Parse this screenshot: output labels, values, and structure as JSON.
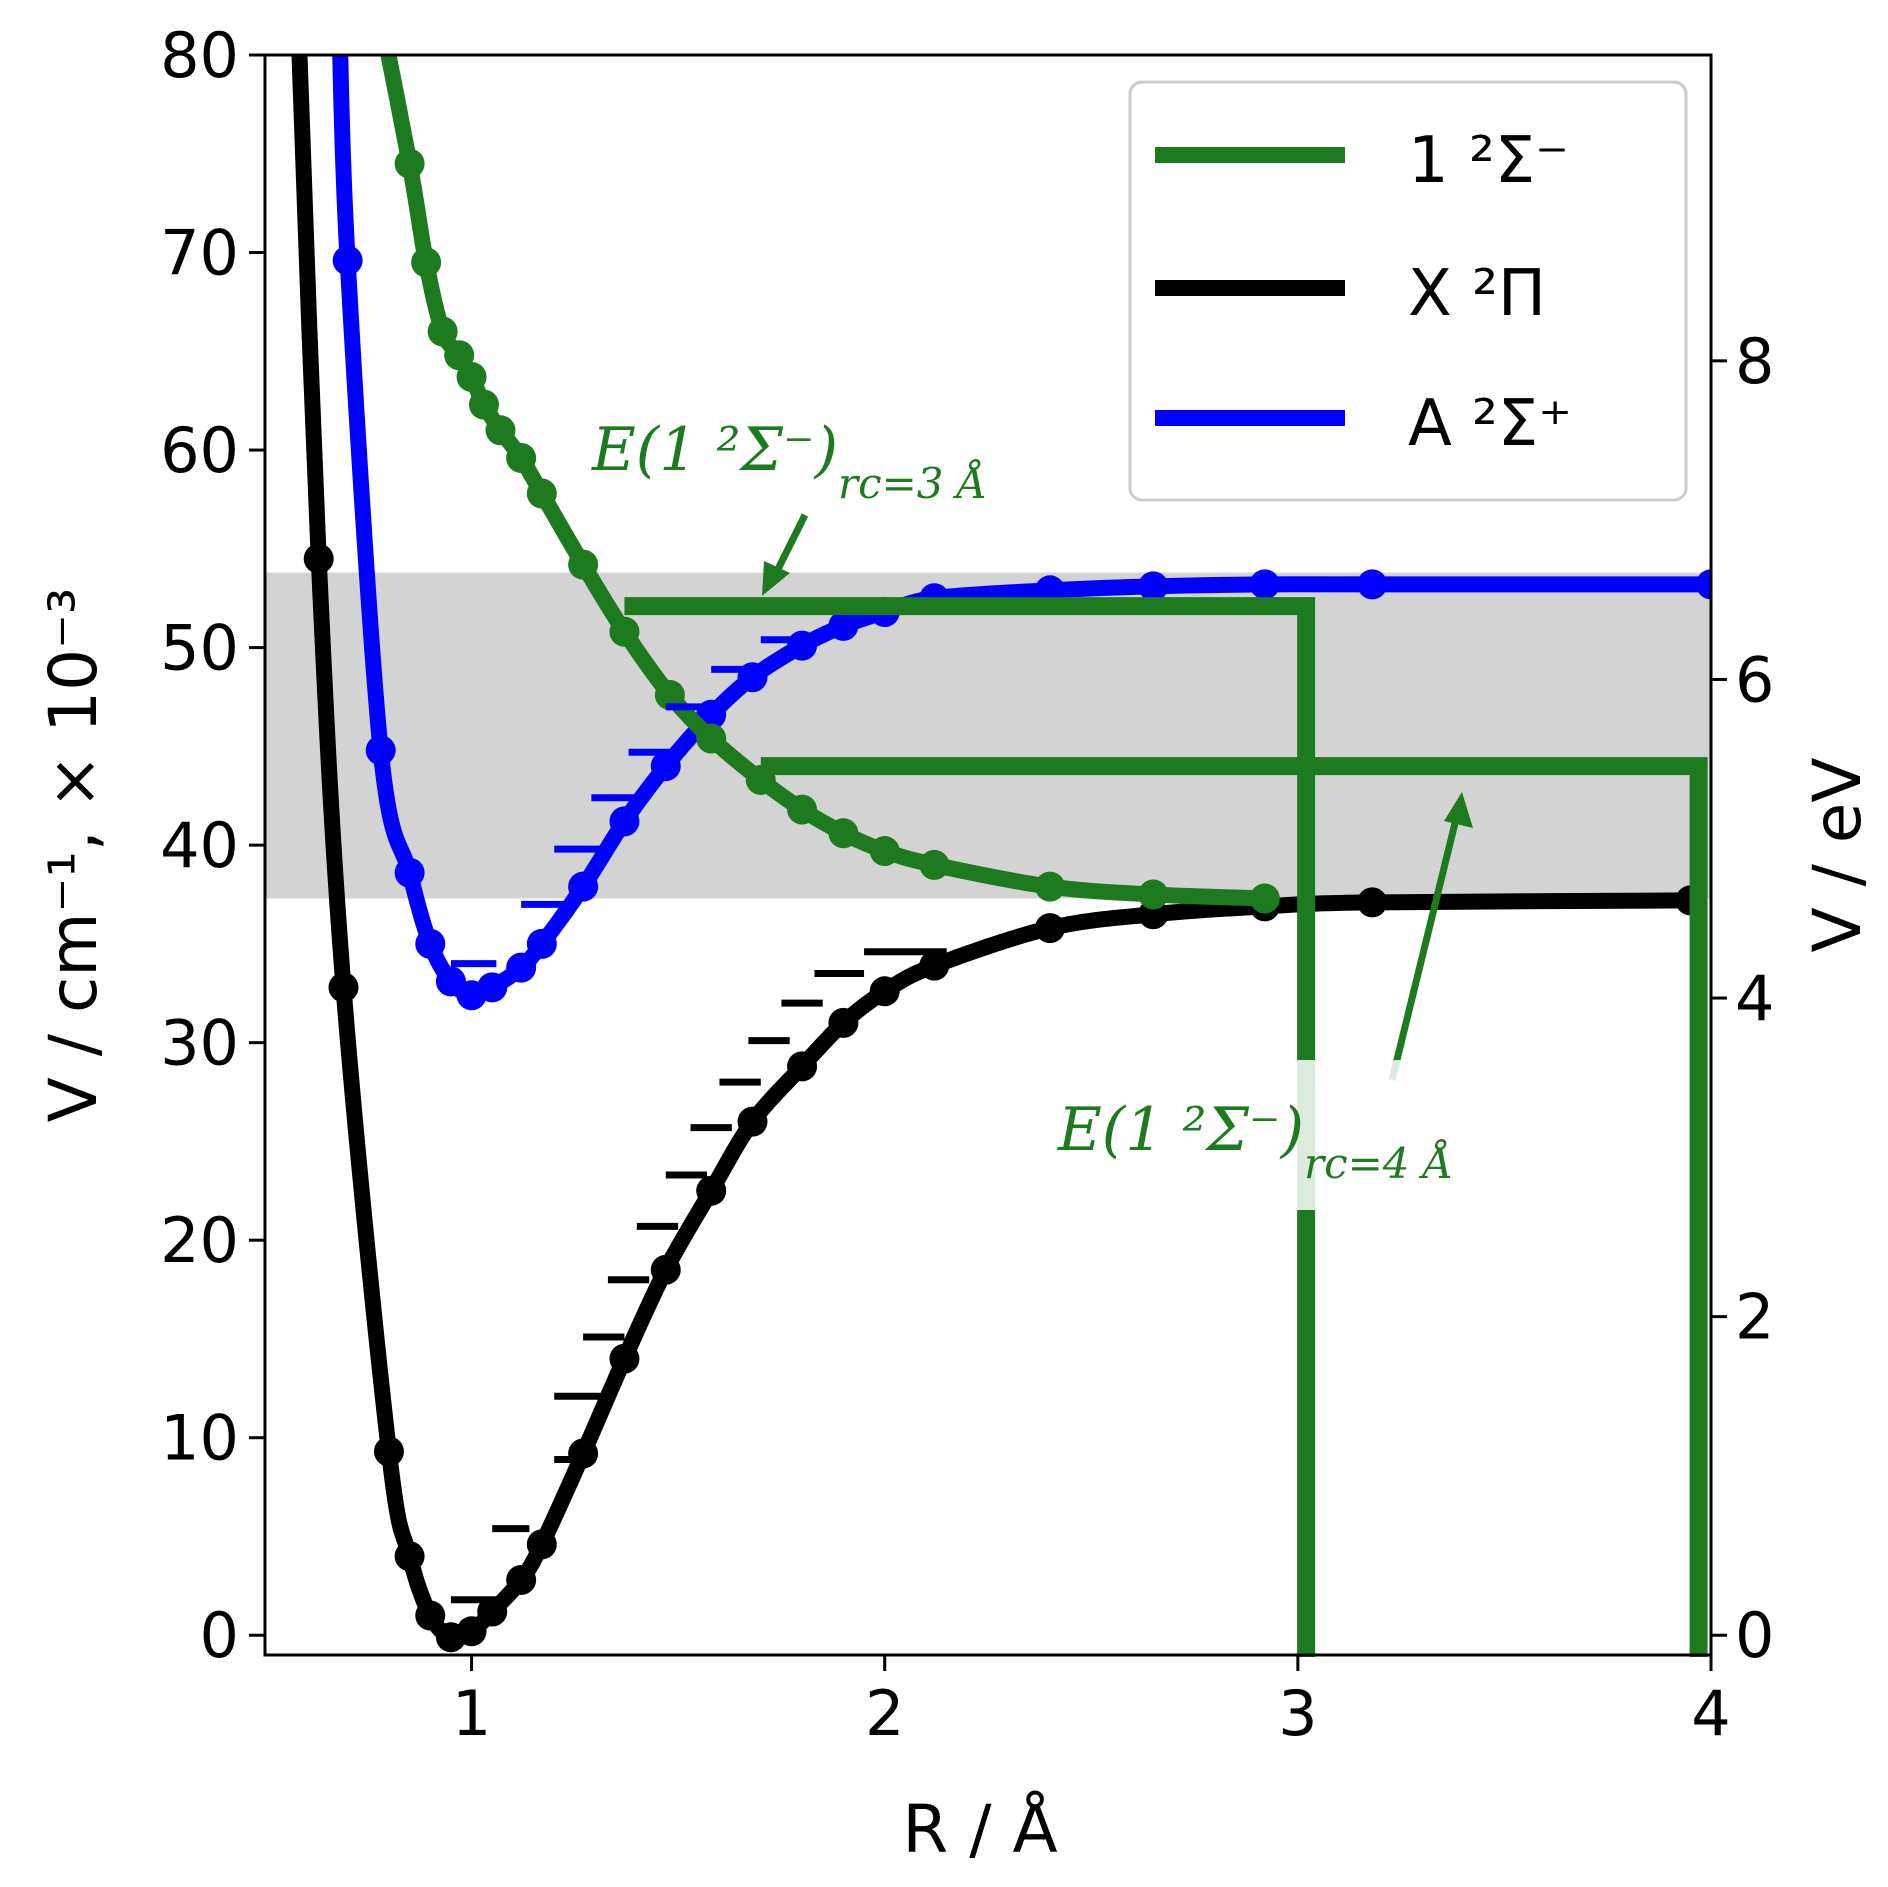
{
  "chart_data": {
    "type": "line",
    "xlabel": "R / Å",
    "ylabel": "V / cm⁻¹, × 10⁻³",
    "y2label": "V / eV",
    "xlim": [
      0.5,
      4.0
    ],
    "ylim": [
      -1,
      80
    ],
    "y2lim": [
      -0.124,
      9.92
    ],
    "x_ticks": [
      "1",
      "2",
      "3",
      "4"
    ],
    "y_ticks": [
      "0",
      "10",
      "20",
      "30",
      "40",
      "50",
      "60",
      "70",
      "80"
    ],
    "y2_ticks": [
      "0",
      "2",
      "4",
      "6",
      "8"
    ],
    "grid": false,
    "legend_position": "top-right",
    "colors": {
      "green": "#1e7a1e",
      "black": "#000000",
      "blue": "#0000ff",
      "band": "#d3d3d3"
    },
    "series": [
      {
        "name": "1 ²Σ⁻",
        "color": "#1e7a1e",
        "x": [
          0.78,
          0.85,
          0.89,
          0.93,
          0.97,
          1.0,
          1.03,
          1.07,
          1.12,
          1.17,
          1.27,
          1.37,
          1.48,
          1.58,
          1.7,
          1.8,
          1.9,
          2.0,
          2.12,
          2.4,
          2.65,
          2.92
        ],
        "y": [
          82.0,
          74.5,
          69.5,
          66.0,
          64.8,
          63.7,
          62.3,
          61.0,
          59.6,
          57.8,
          54.2,
          50.8,
          47.6,
          45.4,
          43.3,
          41.8,
          40.6,
          39.7,
          39.0,
          37.9,
          37.5,
          37.3
        ]
      },
      {
        "name": "X ²Π",
        "color": "#000000",
        "x": [
          0.58,
          0.63,
          0.69,
          0.8,
          0.85,
          0.9,
          0.95,
          1.0,
          1.05,
          1.12,
          1.17,
          1.27,
          1.37,
          1.47,
          1.58,
          1.68,
          1.8,
          1.9,
          2.0,
          2.12,
          2.4,
          2.65,
          2.92,
          3.18,
          3.95
        ],
        "y": [
          82.0,
          54.5,
          32.8,
          9.3,
          4.0,
          1.0,
          -0.1,
          0.2,
          1.2,
          2.8,
          4.6,
          9.2,
          14.0,
          18.5,
          22.5,
          26.0,
          28.8,
          31.0,
          32.6,
          33.9,
          35.8,
          36.5,
          36.9,
          37.1,
          37.2
        ]
      },
      {
        "name": "A ²Σ⁺",
        "color": "#0000ff",
        "x": [
          0.68,
          0.7,
          0.78,
          0.85,
          0.9,
          0.95,
          1.0,
          1.05,
          1.12,
          1.17,
          1.27,
          1.37,
          1.47,
          1.58,
          1.68,
          1.8,
          1.9,
          2.0,
          2.12,
          2.4,
          2.65,
          2.92,
          3.18,
          4.0
        ],
        "y": [
          82.0,
          69.6,
          44.8,
          38.6,
          35.0,
          33.1,
          32.4,
          32.8,
          33.8,
          35.0,
          37.9,
          41.2,
          44.0,
          46.6,
          48.5,
          50.1,
          51.1,
          51.8,
          52.5,
          52.9,
          53.1,
          53.2,
          53.2,
          53.2
        ]
      }
    ],
    "vibrational_levels": {
      "X": [
        {
          "x1": 0.95,
          "x2": 1.06,
          "y": 1.8
        },
        {
          "x1": 1.05,
          "x2": 1.14,
          "y": 5.4
        },
        {
          "x1": 1.2,
          "x2": 1.3,
          "y": 8.9
        },
        {
          "x1": 1.2,
          "x2": 1.33,
          "y": 12.1
        },
        {
          "x1": 1.27,
          "x2": 1.37,
          "y": 15.1
        },
        {
          "x1": 1.33,
          "x2": 1.43,
          "y": 18.0
        },
        {
          "x1": 1.4,
          "x2": 1.5,
          "y": 20.7
        },
        {
          "x1": 1.47,
          "x2": 1.57,
          "y": 23.3
        },
        {
          "x1": 1.53,
          "x2": 1.63,
          "y": 25.7
        },
        {
          "x1": 1.6,
          "x2": 1.7,
          "y": 28.0
        },
        {
          "x1": 1.67,
          "x2": 1.77,
          "y": 30.1
        },
        {
          "x1": 1.75,
          "x2": 1.85,
          "y": 32.0
        },
        {
          "x1": 1.83,
          "x2": 1.95,
          "y": 33.5
        },
        {
          "x1": 1.95,
          "x2": 2.15,
          "y": 34.6
        }
      ],
      "A": [
        {
          "x1": 0.95,
          "x2": 1.06,
          "y": 34.0
        },
        {
          "x1": 1.12,
          "x2": 1.23,
          "y": 37.0
        },
        {
          "x1": 1.2,
          "x2": 1.32,
          "y": 39.8
        },
        {
          "x1": 1.29,
          "x2": 1.41,
          "y": 42.4
        },
        {
          "x1": 1.38,
          "x2": 1.5,
          "y": 44.7
        },
        {
          "x1": 1.47,
          "x2": 1.6,
          "y": 47.0
        },
        {
          "x1": 1.58,
          "x2": 1.7,
          "y": 48.9
        },
        {
          "x1": 1.7,
          "x2": 1.82,
          "y": 50.4
        }
      ]
    },
    "shaded_band": {
      "y1": 37.3,
      "y2": 53.8,
      "color": "#d3d3d3"
    },
    "cutoff_lines": [
      {
        "label": "r_c = 3 Å",
        "x_start": 1.37,
        "x_end": 3.02,
        "y": 52.1
      },
      {
        "label": "r_c = 4 Å",
        "x_start": 1.7,
        "x_end": 3.97,
        "y": 44.0
      }
    ],
    "annotations": [
      {
        "text_main": "E(1 ²Σ⁻)",
        "text_sub": "rc=3 Å"
      },
      {
        "text_main": "E(1 ²Σ⁻)",
        "text_sub": "rc=4 Å"
      }
    ]
  }
}
